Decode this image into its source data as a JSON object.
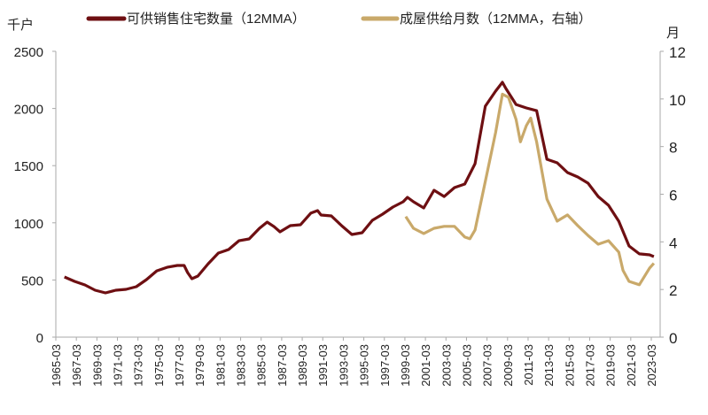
{
  "chart_data": {
    "type": "line",
    "title": "",
    "left_unit": "千户",
    "right_unit": "月",
    "left_ylim": [
      0,
      2500
    ],
    "left_ticks": [
      "0",
      "500",
      "1000",
      "1500",
      "2000",
      "2500"
    ],
    "right_ylim": [
      0,
      12
    ],
    "right_ticks": [
      "0",
      "2",
      "4",
      "6",
      "8",
      "10",
      "12"
    ],
    "x_ticks": [
      "1965-03",
      "1967-03",
      "1969-03",
      "1971-03",
      "1973-03",
      "1975-03",
      "1977-03",
      "1979-03",
      "1981-03",
      "1983-03",
      "1985-03",
      "1987-03",
      "1989-03",
      "1991-03",
      "1993-03",
      "1995-03",
      "1997-03",
      "1999-03",
      "2001-03",
      "2003-03",
      "2005-03",
      "2007-03",
      "2009-03",
      "2011-03",
      "2013-03",
      "2015-03",
      "2017-03",
      "2019-03",
      "2021-03",
      "2023-03"
    ],
    "grid": false,
    "legend_placement": "top",
    "series": [
      {
        "name": "可供销售住宅数量（12MMA）",
        "axis": "left",
        "color": "#6e0f12",
        "x": [
          "1966-01",
          "1967-01",
          "1968-01",
          "1969-01",
          "1970-01",
          "1971-01",
          "1972-01",
          "1973-01",
          "1974-01",
          "1975-01",
          "1976-01",
          "1977-01",
          "1977-09",
          "1978-01",
          "1978-06",
          "1979-01",
          "1980-01",
          "1981-01",
          "1982-01",
          "1983-01",
          "1984-01",
          "1985-01",
          "1985-10",
          "1986-06",
          "1987-01",
          "1988-01",
          "1989-01",
          "1990-01",
          "1990-09",
          "1991-01",
          "1992-01",
          "1993-01",
          "1994-01",
          "1995-01",
          "1996-01",
          "1997-01",
          "1998-01",
          "1999-01",
          "1999-06",
          "2000-01",
          "2001-01",
          "2002-01",
          "2003-01",
          "2004-01",
          "2005-01",
          "2006-01",
          "2007-01",
          "2008-01",
          "2008-09",
          "2009-01",
          "2010-01",
          "2011-01",
          "2012-01",
          "2013-01",
          "2014-01",
          "2015-01",
          "2016-01",
          "2017-01",
          "2018-01",
          "2019-01",
          "2020-01",
          "2021-01",
          "2022-01",
          "2023-01",
          "2023-06"
        ],
        "values": [
          526,
          488,
          457,
          410,
          387,
          410,
          418,
          441,
          503,
          580,
          611,
          627,
          627,
          565,
          511,
          534,
          642,
          735,
          766,
          843,
          859,
          952,
          1006,
          967,
          921,
          975,
          983,
          1084,
          1107,
          1068,
          1060,
          975,
          898,
          913,
          1022,
          1076,
          1138,
          1184,
          1223,
          1184,
          1130,
          1285,
          1230,
          1308,
          1339,
          1517,
          2020,
          2152,
          2229,
          2175,
          2035,
          2005,
          1981,
          1556,
          1525,
          1440,
          1401,
          1347,
          1230,
          1153,
          1014,
          797,
          728,
          720,
          704
        ]
      },
      {
        "name": "成屋供给月数（12MMA，右轴）",
        "axis": "right",
        "color": "#c9a96a",
        "x": [
          "1999-04",
          "2000-01",
          "2001-01",
          "2002-01",
          "2003-01",
          "2004-01",
          "2005-01",
          "2005-07",
          "2006-01",
          "2007-01",
          "2008-01",
          "2008-09",
          "2009-04",
          "2010-01",
          "2010-06",
          "2011-01",
          "2011-06",
          "2012-01",
          "2013-01",
          "2014-01",
          "2015-01",
          "2016-01",
          "2017-01",
          "2018-01",
          "2019-01",
          "2020-01",
          "2020-06",
          "2021-01",
          "2022-01",
          "2023-01",
          "2023-06"
        ],
        "values": [
          5.06,
          4.57,
          4.35,
          4.57,
          4.65,
          4.65,
          4.2,
          4.13,
          4.5,
          6.54,
          8.59,
          10.2,
          10.07,
          9.14,
          8.2,
          8.88,
          9.2,
          8.2,
          5.8,
          4.87,
          5.13,
          4.68,
          4.27,
          3.9,
          4.05,
          3.57,
          2.8,
          2.34,
          2.2,
          2.9,
          3.1
        ]
      }
    ]
  }
}
